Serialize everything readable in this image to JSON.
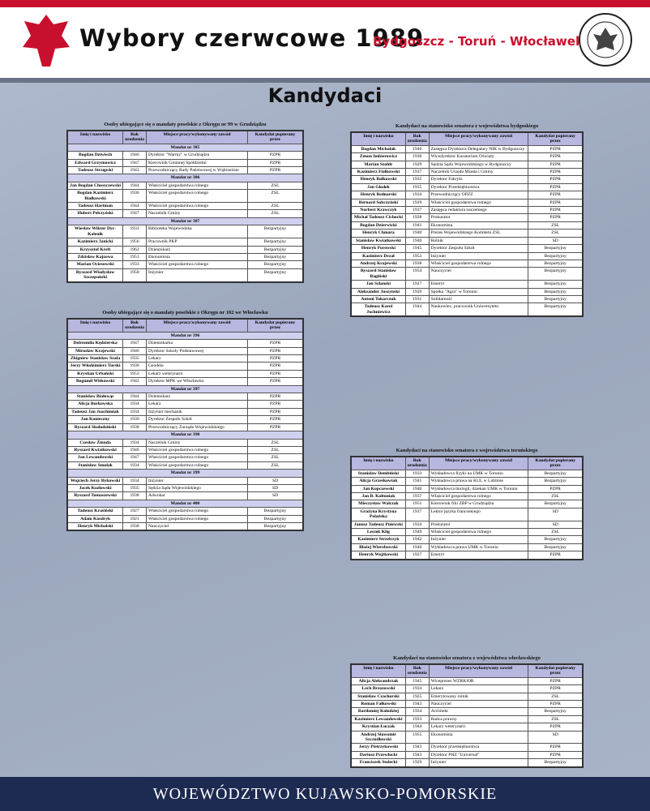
{
  "header": {
    "title": "Wybory czerwcowe 1989",
    "subtitle": "Bydgoszcz - Toruń - Włocławek"
  },
  "heading": "Kandydaci",
  "footer": "WOJEWÓDZTWO KUJAWSKO-POMORSKIE",
  "tables": [
    {
      "title": "Osoby ubiegające się o mandaty poselskie z Okręgu nr 99 w Grudziądzu",
      "columns": [
        "Imię i nazwisko",
        "Rok urodzenia",
        "Miejsce pracy/wykonywany zawód",
        "Kandydat popierany przez"
      ],
      "rows": [
        [
          "Mandat nr 385"
        ],
        [
          "Bogdan Dziwisch",
          "1946",
          "Dyrektor \"Warmy\" w Grudziądzu",
          "PZPR"
        ],
        [
          "Edward Grzymowicz",
          "1947",
          "Kierownik Gminnej Spółdzielni",
          "PZPR"
        ],
        [
          "Tadeusz Strzępski",
          "1943",
          "Przewodniczący Rady Państwowej w Wąbrzeźnie",
          "PZPR"
        ],
        [
          "Mandat nr 386"
        ],
        [
          "Jan Bogdan Choszczewski",
          "1944",
          "Właściciel gospodarstwa rolnego",
          "ZSL"
        ],
        [
          "Bogdan Kazimierz Białkowski",
          "1936",
          "Właściciel gospodarstwa rolnego",
          "ZSL"
        ],
        [
          "Tadeusz Hartman",
          "1944",
          "Właściciel gospodarstwa rolnego",
          "ZSL"
        ],
        [
          "Hubert Pełczyński",
          "1947",
          "Naczelnik Gminy",
          "ZSL"
        ],
        [
          "Mandat nr 387"
        ],
        [
          "Wiesław Wiktor Dyc-Kalenik",
          "1933",
          "Biblioteka Wojewódzka",
          "Bezpartyjny"
        ],
        [
          "Kazimierz Janicki",
          "1956",
          "Pracownik PKP",
          "Bezpartyjny"
        ],
        [
          "Krzysztof Kreft",
          "1962",
          "Dziennikarz",
          "Bezpartyjny"
        ],
        [
          "Zdzisław Kajzowa",
          "1953",
          "Ekonomista",
          "Bezpartyjny"
        ],
        [
          "Marian Ociesowski",
          "1933",
          "Właściciel gospodarstwa rolnego",
          "Bezpartyjny"
        ],
        [
          "Ryszard Władysław Szczepański",
          "1958",
          "Inżynier",
          "Bezpartyjny"
        ]
      ]
    },
    {
      "title": "Osoby ubiegające się o mandaty poselskie z Okręgu nr 102 we Włocławku",
      "columns": [
        "Imię i nazwisko",
        "Rok urodzenia",
        "Miejsce pracy/wykonywany zawód",
        "Kandydat popierany przez"
      ],
      "rows": [
        [
          "Mandat nr 396"
        ],
        [
          "Dobromiła Kędzierska",
          "1947",
          "Dziennikarka",
          "PZPR"
        ],
        [
          "Mirosław Krajewski",
          "1946",
          "Dyrektor Szkoły Podstawowej",
          "PZPR"
        ],
        [
          "Zbigniew Stanisław Szafa",
          "1935",
          "Lekarz",
          "PZPR"
        ],
        [
          "Jerzy Włodzimierz Turski",
          "1936",
          "Geodeta",
          "PZPR"
        ],
        [
          "Krystian Urbański",
          "1953",
          "Lekarz weterynarii",
          "PZPR"
        ],
        [
          "Bogumił Witkowski",
          "1942",
          "Dyrektor MPK we Włocławku",
          "PZPR"
        ],
        [
          "Mandat nr 397"
        ],
        [
          "Stanisław Białowąs",
          "1944",
          "Dziennikarz",
          "PZPR"
        ],
        [
          "Alicja Borkowska",
          "1934",
          "Lekarz",
          "PZPR"
        ],
        [
          "Tadeusz Jan Joachimiak",
          "1934",
          "Inżynier mechanik",
          "PZPR"
        ],
        [
          "Jan Konieczny",
          "1939",
          "Dyrektor Zespołu Szkół",
          "PZPR"
        ],
        [
          "Ryszard Skołodziński",
          "1938",
          "Przewodniczący Zarządu Wojewódzkiego",
          "PZPR"
        ],
        [
          "Mandat nr 398"
        ],
        [
          "Czesław Żmuda",
          "1934",
          "Naczelnik Gminy",
          "ZSL"
        ],
        [
          "Ryszard Kwiatkowski",
          "1946",
          "Właściciel gospodarstwa rolnego",
          "ZSL"
        ],
        [
          "Jan Lewandowski",
          "1947",
          "Właściciel gospodarstwa rolnego",
          "ZSL"
        ],
        [
          "Stanisław Smolak",
          "1934",
          "Właściciel gospodarstwa rolnego",
          "ZSL"
        ],
        [
          "Mandat nr 399"
        ],
        [
          "Wojciech Jerzy Bykowski",
          "1934",
          "Inżynier",
          "SD"
        ],
        [
          "Jacek Kozłowski",
          "1935",
          "Sędzia Sądu Wojewódzkiego",
          "SD"
        ],
        [
          "Ryszard Tomaszewski",
          "1938",
          "Adwokat",
          "SD"
        ],
        [
          "Mandat nr 400"
        ],
        [
          "Tadeusz Krasiński",
          "1927",
          "Właściciel gospodarstwa rolnego",
          "Bezpartyjny"
        ],
        [
          "Adam Kozdryk",
          "1921",
          "Właściciel gospodarstwa rolnego",
          "Bezpartyjny"
        ],
        [
          "Henryk Michalski",
          "1938",
          "Nauczyciel",
          "Bezpartyjny"
        ]
      ]
    },
    {
      "title": "Kandydaci na stanowisko senatora z województwa bydgoskiego",
      "columns": [
        "Imię i nazwisko",
        "Rok urodzenia",
        "Miejsce pracy/wykonywany zawód",
        "Kandydat popierany przez"
      ],
      "rows": [
        [
          "Bogdan Michalak",
          "1946",
          "Zastępca Dyrektora Delegatury NIK w Bydgoszczy",
          "PZPR"
        ],
        [
          "Zenon Imbierowicz",
          "1930",
          "Wicedyrektor Kuratorium Oświaty",
          "PZPR"
        ],
        [
          "Marian Szołdr",
          "1929",
          "Sędzia Sądu Wojewódzkiego w Bydgoszczy",
          "PZPR"
        ],
        [
          "Kazimierz Fiałkowski",
          "1937",
          "Naczelnik Urzędu Miasta i Gminy",
          "PZPR"
        ],
        [
          "Henryk Bałkowski",
          "1935",
          "Dyrektor Fabryki",
          "PZPR"
        ],
        [
          "Jan Głodek",
          "1935",
          "Dyrektor Przedsiębiorstwa",
          "PZPR"
        ],
        [
          "Henryk Bednarski",
          "1934",
          "Przewodniczący OPZZ",
          "PZPR"
        ],
        [
          "Bernard Sobczyński",
          "1929",
          "Właściciel gospodarstwa rolnego",
          "PZPR"
        ],
        [
          "Norbert Krawczyk",
          "1937",
          "Zastępca redaktora naczelnego",
          "PZPR"
        ],
        [
          "Michał Tadeusz Cichocki",
          "1928",
          "Prokurator",
          "PZPR"
        ],
        [
          "Bogdan Dzierwicki",
          "1941",
          "Ekonomista",
          "ZSL"
        ],
        [
          "Henryk Chmara",
          "1940",
          "Prezes Wojewódzkiego Komitetu ZSL",
          "ZSL"
        ],
        [
          "Stanisław Kwiatkowski",
          "1940",
          "Rolnik",
          "SD"
        ],
        [
          "Henryk Porowski",
          "1945",
          "Dyrektor Zespołu Szkół",
          "Bezpartyjny"
        ],
        [
          "Kazimierz Drzał",
          "1953",
          "Inżynier",
          "Bezpartyjny"
        ],
        [
          "Andrzej Krajewski",
          "1938",
          "Właściciel gospodarstwa rolnego",
          "Bezpartyjny"
        ],
        [
          "Ryszard Stanisław Bagiński",
          "1954",
          "Nauczyciel",
          "Bezpartyjny"
        ],
        [
          "Jan Szlanski",
          "1927",
          "Emeryt",
          "Bezpartyjny"
        ],
        [
          "Aleksander Juszynski",
          "1929",
          "Spółka \"Agra\" w Toruniu",
          "Bezpartyjny"
        ],
        [
          "Antoni Tokarczuk",
          "1931",
          "Solidarność",
          "Bezpartyjny"
        ],
        [
          "Tadeusz Karol Juchniewicz",
          "1944",
          "Naukowiec, pracownik Uniwersytetu",
          "Bezpartyjny"
        ]
      ]
    },
    {
      "title": "Kandydaci na stanowisko senatora z województwa toruńskiego",
      "columns": [
        "Imię i nazwisko",
        "Rok urodzenia",
        "Miejsce pracy/wykonywany zawód",
        "Kandydat popierany przez"
      ],
      "rows": [
        [
          "Stanisław Dembiński",
          "1933",
          "Wykładowca fizyki na UMK w Toruniu",
          "Bezpartyjny"
        ],
        [
          "Alicja Grześkowiak",
          "1941",
          "Wykładowca prawa na KUL w Lublinie",
          "Bezpartyjny"
        ],
        [
          "Jan Kopczewski",
          "1940",
          "Wykładowca biologii, dziekan UMK w Toruniu",
          "PZPR"
        ],
        [
          "Jan B. Kołtuniak",
          "1937",
          "Właściciel gospodarstwa rolnego",
          "ZSL"
        ],
        [
          "Mieczysław Walczak",
          "1951",
          "Kierownik filii ZBP w Grudziądzu",
          "Bezpartyjny"
        ],
        [
          "Grażyna Krystyna Polańska",
          "1937",
          "Lektor języka francuskiego",
          "SD"
        ],
        [
          "Janusz Tadeusz Pniewski",
          "1934",
          "Prokurator",
          "SD"
        ],
        [
          "Leszek Klig",
          "1949",
          "Właściciel gospodarstwa rolnego",
          "ZSL"
        ],
        [
          "Kazimierz Strzelczyk",
          "1942",
          "Inżynier",
          "Bezpartyjny"
        ],
        [
          "Błażej Wierzbowski",
          "1946",
          "Wykładowca prawa UMK w Toruniu",
          "Bezpartyjny"
        ],
        [
          "Henryk Wojtkowski",
          "1927",
          "Emeryt",
          "PZPR"
        ]
      ]
    },
    {
      "title": "Kandydaci na stanowisko senatora z województwa włocławskiego",
      "columns": [
        "Imię i nazwisko",
        "Rok urodzenia",
        "Miejsce pracy/wykonywany zawód",
        "Kandydat popierany przez"
      ],
      "rows": [
        [
          "Alicja Aleksandrzak",
          "1945",
          "Wiceprezes WZRKiOR",
          "PZPR"
        ],
        [
          "Lech Brzozowski",
          "1934",
          "Lekarz",
          "PZPR"
        ],
        [
          "Stanisław Czachorski",
          "1925",
          "Emerytowany rolnik",
          "ZSL"
        ],
        [
          "Roman Fałkowski",
          "1943",
          "Nauczyciel",
          "PZPR"
        ],
        [
          "Bartłomiej Kołodziej",
          "1934",
          "Architekt",
          "Bezpartyjny"
        ],
        [
          "Kazimierz Lewandowski",
          "1933",
          "Radca prawny",
          "ZSL"
        ],
        [
          "Krystian Łuczak",
          "1944",
          "Lekarz weterynarii",
          "PZPR"
        ],
        [
          "Andrzej Sławomir Szczudłowski",
          "1955",
          "Ekonomista",
          "SD"
        ],
        [
          "Jerzy Pietrzykowski",
          "1943",
          "Dyrektor przedsiębiorstwa",
          "PZPR"
        ],
        [
          "Dariusz Przewłocki",
          "1943",
          "Dyrektor PHZ \"Universal\"",
          "PZPR"
        ],
        [
          "Franciszek Stolecki",
          "1929",
          "Inżynier",
          "Bezpartyjny"
        ]
      ]
    }
  ]
}
